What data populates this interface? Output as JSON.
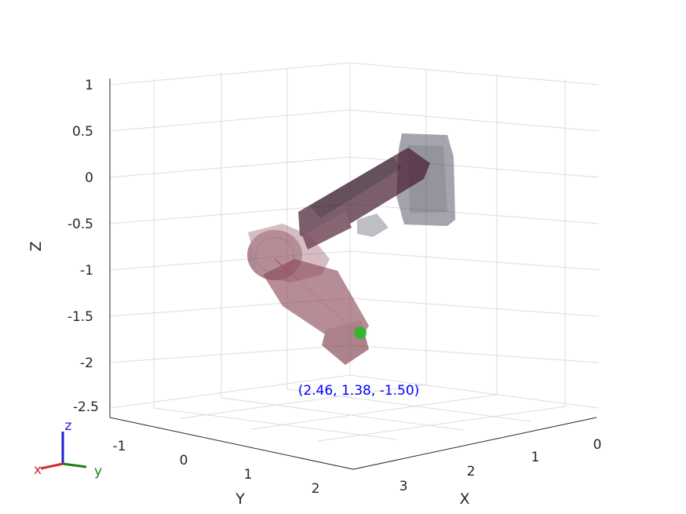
{
  "chart_data": {
    "type": "3d-robot-plot",
    "xlabel": "X",
    "ylabel": "Y",
    "zlabel": "Z",
    "x_ticks": [
      0,
      1,
      2,
      3
    ],
    "y_ticks": [
      -1,
      0,
      1,
      2
    ],
    "z_ticks": [
      1,
      0.5,
      0,
      -0.5,
      -1,
      -1.5,
      -2,
      -2.5
    ],
    "x_tick_labels": [
      "0",
      "1",
      "2",
      "3"
    ],
    "y_tick_labels": [
      "-1",
      "0",
      "1",
      "2"
    ],
    "z_tick_labels": [
      "1",
      "0.5",
      "0",
      "-0.5",
      "-1",
      "-1.5",
      "-2",
      "-2.5"
    ],
    "grid": true,
    "end_effector": {
      "x": 2.46,
      "y": 1.38,
      "z": -1.5,
      "label": "(2.46, 1.38, -1.50)"
    },
    "triad": {
      "x": "x",
      "y": "y",
      "z": "z"
    },
    "colors": {
      "annotation": "#0000ff",
      "triad_x": "#d62728",
      "triad_y": "#1a7f1a",
      "triad_z": "#1f1fcf",
      "robot_body": "#6b2a3a",
      "base_mount": "#5a5a6a",
      "end_marker": "#22bb22"
    }
  }
}
